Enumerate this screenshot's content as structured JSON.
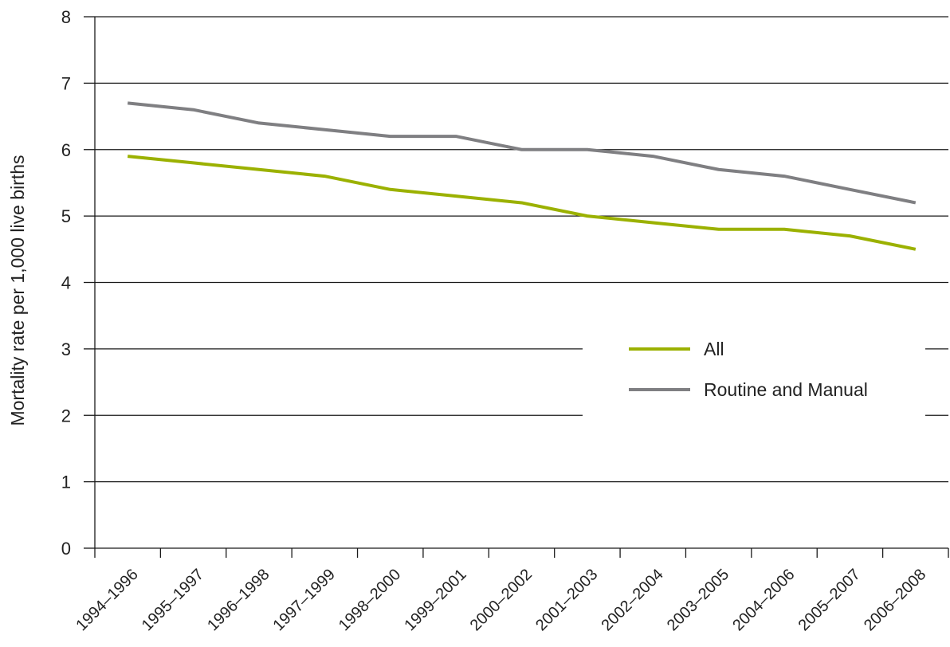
{
  "chart_data": {
    "type": "line",
    "title": "",
    "xlabel": "",
    "ylabel": "Mortality rate per 1,000 live births",
    "ylim": [
      0,
      8
    ],
    "yticks": [
      "0",
      "1",
      "2",
      "3",
      "4",
      "5",
      "6",
      "7",
      "8"
    ],
    "categories": [
      "1994–1996",
      "1995–1997",
      "1996–1998",
      "1997–1999",
      "1998–2000",
      "1999–2001",
      "2000–2002",
      "2001–2003",
      "2002–2004",
      "2003–2005",
      "2004–2006",
      "2005–2007",
      "2006–2008"
    ],
    "series": [
      {
        "name": "All",
        "color": "#9bb100",
        "values": [
          5.9,
          5.8,
          5.7,
          5.6,
          5.4,
          5.3,
          5.2,
          5.0,
          4.9,
          4.8,
          4.8,
          4.7,
          4.5
        ]
      },
      {
        "name": "Routine and Manual",
        "color": "#7f7f82",
        "values": [
          6.7,
          6.6,
          6.4,
          6.3,
          6.2,
          6.2,
          6.0,
          6.0,
          5.9,
          5.7,
          5.6,
          5.4,
          5.2
        ]
      }
    ],
    "grid": true,
    "legend_position": "center-right"
  }
}
